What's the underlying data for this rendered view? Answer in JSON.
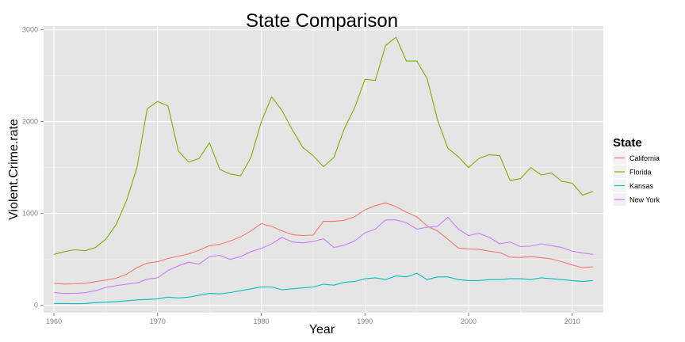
{
  "chart_data": {
    "type": "line",
    "title": "State Comparison",
    "xlabel": "Year",
    "ylabel": "Violent.Crime.rate",
    "xlim": [
      1959,
      2013
    ],
    "ylim": [
      -80,
      3040
    ],
    "x_ticks": [
      1960,
      1970,
      1980,
      1990,
      2000,
      2010
    ],
    "y_ticks": [
      0,
      1000,
      2000,
      3000
    ],
    "grid": true,
    "legend_title": "State",
    "legend_position": "right",
    "x": [
      1960,
      1961,
      1962,
      1963,
      1964,
      1965,
      1966,
      1967,
      1968,
      1969,
      1970,
      1971,
      1972,
      1973,
      1974,
      1975,
      1976,
      1977,
      1978,
      1979,
      1980,
      1981,
      1982,
      1983,
      1984,
      1985,
      1986,
      1987,
      1988,
      1989,
      1990,
      1991,
      1992,
      1993,
      1994,
      1995,
      1996,
      1997,
      1998,
      1999,
      2000,
      2001,
      2002,
      2003,
      2004,
      2005,
      2006,
      2007,
      2008,
      2009,
      2010,
      2011,
      2012
    ],
    "series": [
      {
        "name": "California",
        "color": "#F8766D",
        "values": [
          240,
          232,
          235,
          240,
          258,
          275,
          295,
          340,
          410,
          460,
          475,
          510,
          535,
          560,
          600,
          650,
          665,
          700,
          745,
          810,
          890,
          860,
          810,
          770,
          760,
          765,
          915,
          915,
          925,
          965,
          1040,
          1085,
          1115,
          1075,
          1015,
          965,
          865,
          810,
          720,
          625,
          615,
          610,
          590,
          575,
          525,
          522,
          530,
          520,
          505,
          475,
          440,
          410,
          420
        ]
      },
      {
        "name": "Florida",
        "color": "#7CAE00",
        "values": [
          555,
          585,
          605,
          595,
          630,
          720,
          880,
          1140,
          1500,
          2140,
          2220,
          2170,
          1680,
          1560,
          1600,
          1770,
          1480,
          1430,
          1410,
          1610,
          2000,
          2270,
          2120,
          1910,
          1720,
          1630,
          1510,
          1610,
          1920,
          2150,
          2460,
          2450,
          2830,
          2920,
          2660,
          2660,
          2470,
          2020,
          1710,
          1620,
          1500,
          1600,
          1640,
          1630,
          1360,
          1380,
          1500,
          1420,
          1440,
          1350,
          1330,
          1200,
          1240
        ]
      },
      {
        "name": "Kansas",
        "color": "#00BFC4",
        "values": [
          20,
          20,
          18,
          20,
          30,
          35,
          40,
          50,
          60,
          65,
          70,
          90,
          80,
          90,
          110,
          130,
          125,
          140,
          160,
          180,
          200,
          200,
          170,
          180,
          190,
          200,
          230,
          220,
          250,
          260,
          290,
          300,
          280,
          320,
          310,
          350,
          280,
          310,
          310,
          280,
          270,
          270,
          280,
          280,
          290,
          290,
          280,
          300,
          290,
          280,
          270,
          260,
          270
        ]
      },
      {
        "name": "New York",
        "color": "#C77CFF",
        "values": [
          140,
          130,
          132,
          138,
          160,
          195,
          215,
          230,
          245,
          285,
          300,
          380,
          430,
          470,
          450,
          530,
          545,
          500,
          530,
          585,
          620,
          670,
          740,
          690,
          680,
          695,
          725,
          630,
          655,
          700,
          790,
          830,
          930,
          930,
          900,
          830,
          850,
          860,
          960,
          830,
          760,
          785,
          740,
          670,
          690,
          640,
          645,
          670,
          650,
          630,
          590,
          570,
          555
        ]
      }
    ]
  }
}
